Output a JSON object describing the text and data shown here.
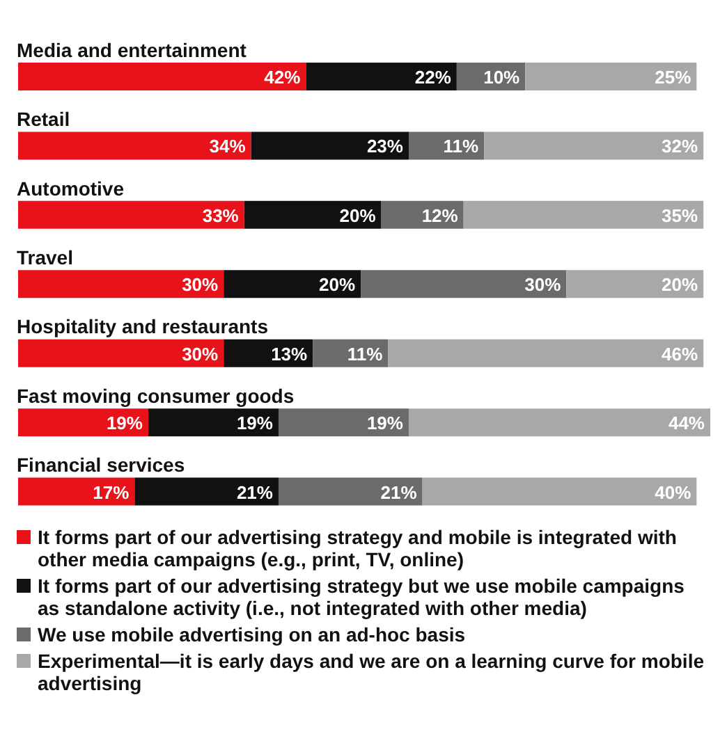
{
  "chart_data": {
    "type": "bar",
    "orientation": "horizontal",
    "stacked": true,
    "legend": "bottom",
    "categories": [
      "Media and entertainment",
      "Retail",
      "Automotive",
      "Travel",
      "Hospitality and restaurants",
      "Fast moving consumer goods",
      "Financial services"
    ],
    "series": [
      {
        "name": "It forms part of our advertising strategy and mobile is integrated with other media campaigns (e.g., print, TV, online)",
        "color": "#e8131a",
        "values": [
          42,
          34,
          33,
          30,
          30,
          19,
          17
        ],
        "value_labels": [
          "42%",
          "34%",
          "33%",
          "30%",
          "30%",
          "19%",
          "17%"
        ]
      },
      {
        "name": "It forms part of our advertising strategy but we use mobile campaigns as standalone activity (i.e., not integrated with other media)",
        "color": "#111111",
        "values": [
          22,
          23,
          20,
          20,
          13,
          19,
          21
        ],
        "value_labels": [
          "22%",
          "23%",
          "20%",
          "20%",
          "13%",
          "19%",
          "21%"
        ]
      },
      {
        "name": "We use mobile advertising on an ad-hoc basis",
        "color": "#6b6b6b",
        "values": [
          10,
          11,
          12,
          30,
          11,
          19,
          21
        ],
        "value_labels": [
          "10%",
          "11%",
          "12%",
          "30%",
          "11%",
          "19%",
          "21%"
        ]
      },
      {
        "name": "Experimental—it is early days and we are on a learning curve for mobile advertising",
        "color": "#a8a8a8",
        "values": [
          25,
          32,
          35,
          20,
          46,
          44,
          40
        ],
        "value_labels": [
          "25%",
          "32%",
          "35%",
          "20%",
          "46%",
          "44%",
          "40%"
        ]
      }
    ]
  }
}
